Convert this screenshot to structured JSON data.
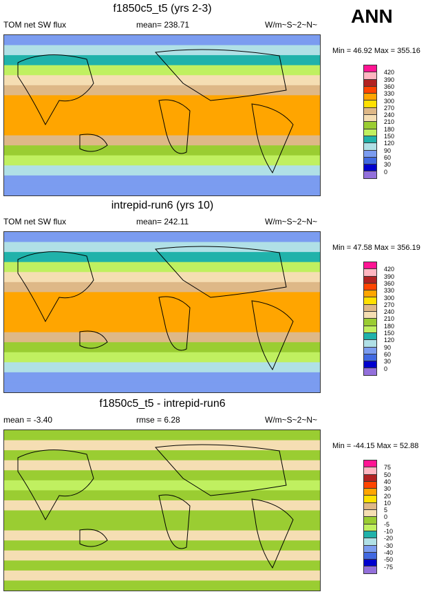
{
  "season": "ANN",
  "panels": [
    {
      "title": "f1850c5_t5 (yrs 2-3)",
      "left": "TOM net SW flux",
      "center": "mean= 238.71",
      "right": "W/m~S~2~N~",
      "minmax": "Min =  46.92 Max = 355.16"
    },
    {
      "title": "intrepid-run6 (yrs 10)",
      "left": "TOM net SW flux",
      "center": "mean= 242.11",
      "right": "W/m~S~2~N~",
      "minmax": "Min =  47.58 Max = 356.19"
    },
    {
      "title": "f1850c5_t5 - intrepid-run6",
      "left": "mean =  -3.40",
      "center": "rmse =   6.28",
      "right": "W/m~S~2~N~",
      "minmax": "Min = -44.15 Max =  52.88"
    }
  ],
  "chart_data": [
    {
      "type": "heatmap",
      "title": "f1850c5_t5 (yrs 2-3)",
      "levels": [
        0,
        30,
        60,
        90,
        120,
        150,
        180,
        210,
        240,
        270,
        300,
        330,
        360,
        390,
        420
      ],
      "zonal_profile_N_to_S": [
        60,
        100,
        130,
        170,
        220,
        260,
        300,
        320,
        310,
        300,
        260,
        200,
        150,
        110,
        80,
        60
      ]
    },
    {
      "type": "heatmap",
      "title": "intrepid-run6 (yrs 10)",
      "levels": [
        0,
        30,
        60,
        90,
        120,
        150,
        180,
        210,
        240,
        270,
        300,
        330,
        360,
        390,
        420
      ],
      "zonal_profile_N_to_S": [
        65,
        100,
        135,
        175,
        225,
        265,
        300,
        325,
        315,
        300,
        265,
        205,
        150,
        110,
        80,
        60
      ]
    },
    {
      "type": "heatmap",
      "title": "f1850c5_t5 - intrepid-run6",
      "levels": [
        -75,
        -50,
        -40,
        -30,
        -20,
        -10,
        -5,
        0,
        5,
        10,
        20,
        30,
        40,
        50,
        75
      ],
      "zonal_profile_N_to_S": [
        -2,
        3,
        -2,
        2,
        -3,
        -8,
        -3,
        2,
        -3,
        -2,
        2,
        -2,
        3,
        -2,
        2,
        -2
      ]
    }
  ],
  "colors": [
    "#9370DB",
    "#0000CD",
    "#4169E1",
    "#7B9CF0",
    "#B0E0E6",
    "#20B2AA",
    "#C0F060",
    "#9ACD32",
    "#F5DEB3",
    "#DEB887",
    "#FFE000",
    "#FFA500",
    "#FF4500",
    "#B22222",
    "#FFB6C1",
    "#FF1493"
  ]
}
